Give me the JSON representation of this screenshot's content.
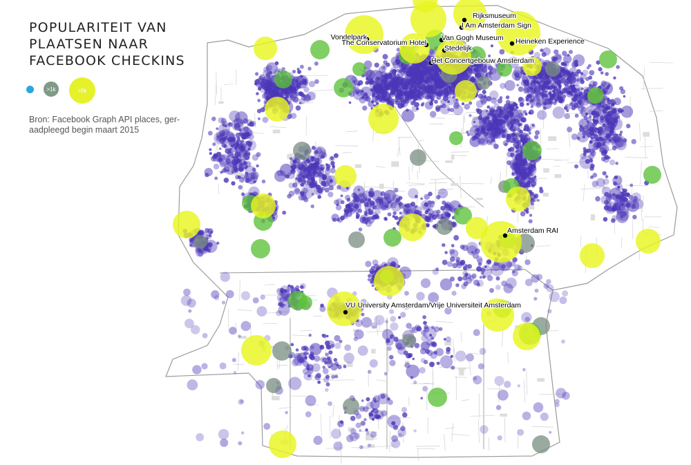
{
  "title": "POPULARITEIT VAN\nPLAATSEN NAAR\nFACEBOOK CHECKINS",
  "legend": [
    {
      "label": "",
      "color": "#2aa7e0"
    },
    {
      "label": ">1k",
      "color": "#7f9a86"
    },
    {
      "label": ">5k",
      "color": "#e5f22a"
    }
  ],
  "source": "Bron: Facebook Graph API places, ger-\naadpleegd begin maart 2015",
  "colors": {
    "small": "#4b36b8",
    "medium": "#7a8e80",
    "green": "#5cc23a",
    "large": "#e8f51f",
    "streets": "#c9c9c9",
    "outline": "#9a9a9a"
  },
  "places": [
    {
      "name": "Rijksmuseum"
    },
    {
      "name": "I Am Amsterdam Sign"
    },
    {
      "name": "Vondelpark"
    },
    {
      "name": "Van Gogh Museum"
    },
    {
      "name": "The Conservatorium Hotel"
    },
    {
      "name": "Heineken Experience"
    },
    {
      "name": "Stedelijk"
    },
    {
      "name": "Het Concertgebouw Amsterdam"
    },
    {
      "name": "Amsterdam RAI"
    },
    {
      "name": "VU University Amsterdam/Vrije Universiteit Amsterdam"
    }
  ]
}
